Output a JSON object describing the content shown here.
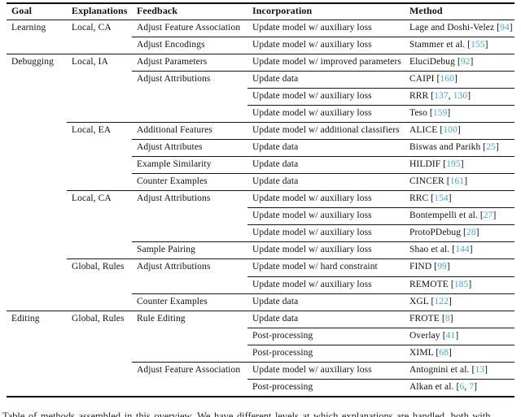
{
  "accent_color": "#41a8dc",
  "caption": "Table of methods assembled in this overview. We have different levels at which explanations are handled, both with",
  "table": {
    "headers": [
      {
        "key": "goal",
        "label": "Goal"
      },
      {
        "key": "explanations",
        "label": "Explanations"
      },
      {
        "key": "feedback",
        "label": "Feedback"
      },
      {
        "key": "incorporation",
        "label": "Incorporation"
      },
      {
        "key": "method",
        "label": "Method"
      }
    ],
    "rows": [
      {
        "goal": "Learning",
        "explanations": "Local, CA",
        "feedback": "Adjust Feature Association",
        "incorporation": "Update model w/ auxiliary loss",
        "method": {
          "label": "Lage and Doshi-Velez",
          "refs": [
            "94"
          ]
        }
      },
      {
        "feedback": "Adjust Encodings",
        "incorporation": "Update model w/ auxiliary loss",
        "method": {
          "label": "Stammer et al.",
          "refs": [
            "155"
          ]
        }
      },
      {
        "goal": "Debugging",
        "explanations": "Local, IA",
        "feedback": "Adjust Parameters",
        "incorporation": "Update model w/ improved parameters",
        "method": {
          "label": "EluciDebug",
          "refs": [
            "92"
          ]
        }
      },
      {
        "feedback": "Adjust Attributions",
        "incorporation": "Update data",
        "method": {
          "label": "CAIPI",
          "refs": [
            "160"
          ]
        }
      },
      {
        "incorporation": "Update model w/ auxiliary loss",
        "method": {
          "label": "RRR",
          "refs": [
            "137",
            "130"
          ]
        }
      },
      {
        "incorporation": "Update model w/ auxiliary loss",
        "method": {
          "label": "Teso",
          "refs": [
            "159"
          ]
        }
      },
      {
        "explanations": "Local, EA",
        "feedback": "Additional Features",
        "incorporation": "Update model w/ additional classifiers",
        "method": {
          "label": "ALICE",
          "refs": [
            "100"
          ]
        }
      },
      {
        "feedback": "Adjust Attributes",
        "incorporation": "Update data",
        "method": {
          "label": "Biswas and Parikh",
          "refs": [
            "25"
          ]
        }
      },
      {
        "feedback": "Example Similarity",
        "incorporation": "Update data",
        "method": {
          "label": "HILDIF",
          "refs": [
            "195"
          ]
        }
      },
      {
        "feedback": "Counter Examples",
        "incorporation": "Update data",
        "method": {
          "label": "CINCER",
          "refs": [
            "161"
          ]
        }
      },
      {
        "explanations": "Local, CA",
        "feedback": "Adjust Attributions",
        "incorporation": "Update model w/ auxiliary loss",
        "method": {
          "label": "RRC",
          "refs": [
            "154"
          ]
        }
      },
      {
        "incorporation": "Update model w/ auxiliary loss",
        "method": {
          "label": "Bontempelli et al.",
          "refs": [
            "27"
          ]
        }
      },
      {
        "incorporation": "Update model w/ auxiliary loss",
        "method": {
          "label": "ProtoPDebug",
          "refs": [
            "28"
          ]
        }
      },
      {
        "feedback": "Sample Pairing",
        "incorporation": "Update model w/ auxiliary loss",
        "method": {
          "label": "Shao et al.",
          "refs": [
            "144"
          ]
        }
      },
      {
        "explanations": "Global, Rules",
        "feedback": "Adjust Attributions",
        "incorporation": "Update model w/ hard constraint",
        "method": {
          "label": "FIND",
          "refs": [
            "99"
          ]
        }
      },
      {
        "incorporation": "Update model w/ auxiliary loss",
        "method": {
          "label": "REMOTE",
          "refs": [
            "185"
          ]
        }
      },
      {
        "feedback": "Counter Examples",
        "incorporation": "Update data",
        "method": {
          "label": "XGL",
          "refs": [
            "122"
          ]
        }
      },
      {
        "goal": "Editing",
        "explanations": "Global, Rules",
        "feedback": "Rule Editing",
        "incorporation": "Update data",
        "method": {
          "label": "FROTE",
          "refs": [
            "8"
          ]
        }
      },
      {
        "incorporation": "Post-processing",
        "method": {
          "label": "Overlay",
          "refs": [
            "41"
          ]
        }
      },
      {
        "incorporation": "Post-processing",
        "method": {
          "label": "XIML",
          "refs": [
            "68"
          ]
        }
      },
      {
        "feedback": "Adjust Feature Association",
        "incorporation": "Update model w/ auxiliary loss",
        "method": {
          "label": "Antognini et al.",
          "refs": [
            "13"
          ]
        }
      },
      {
        "incorporation": "Post-processing",
        "method": {
          "label": "Alkan et al.",
          "refs": [
            "6",
            "7"
          ]
        }
      }
    ]
  }
}
